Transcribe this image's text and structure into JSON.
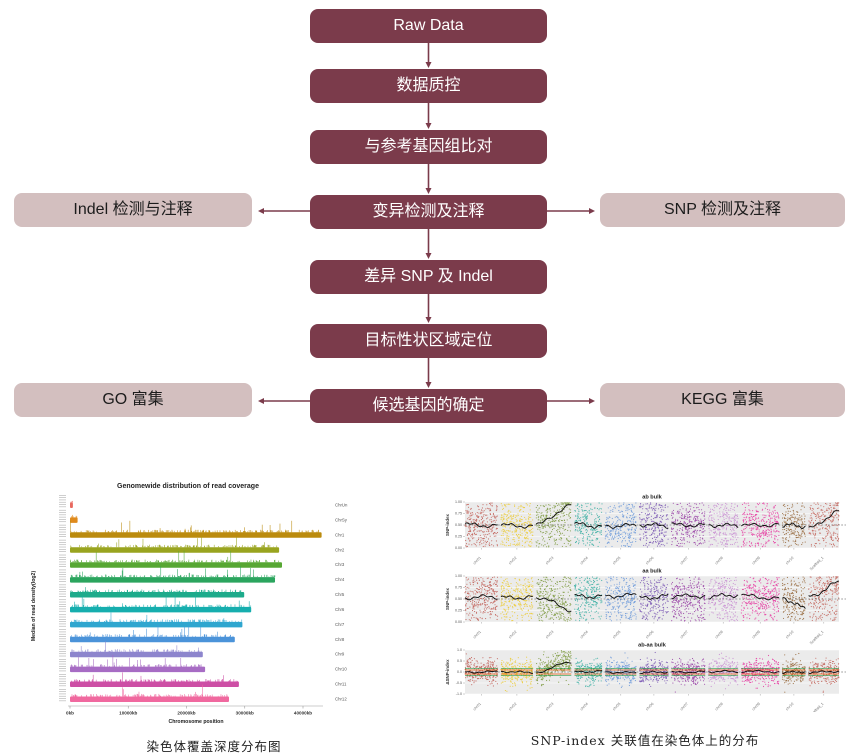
{
  "flowchart": {
    "main_nodes": [
      "Raw Data",
      "数据质控",
      "与参考基因组比对",
      "变异检测及注释",
      "差异 SNP 及 Indel",
      "目标性状区域定位",
      "候选基因的确定"
    ],
    "side_nodes": {
      "indel": "Indel 检测与注释",
      "snp": "SNP 检测及注释",
      "go": "GO 富集",
      "kegg": "KEGG 富集"
    },
    "colors": {
      "node_dark": "#7b3b4b",
      "node_light": "#d3bfbf",
      "arrow": "#7b3b4b",
      "dark_text": "#ffffff",
      "light_text": "#1c1c1c"
    }
  },
  "chart_data": [
    {
      "id": "read-coverage",
      "type": "bar",
      "title": "Genomewide distribution of read coverage",
      "xlabel": "Chromosome position",
      "ylabel": "Median of read density(log2)",
      "caption": "染色体覆盖深度分布图",
      "x_ticks": [
        {
          "label": "0kb",
          "kb": 0
        },
        {
          "label": "10000kb",
          "kb": 10000
        },
        {
          "label": "20000kb",
          "kb": 20000
        },
        {
          "label": "30000kb",
          "kb": 30000
        },
        {
          "label": "40000kb",
          "kb": 40000
        }
      ],
      "xlim_kb": [
        0,
        43500
      ],
      "bars": [
        {
          "label": "ChrUn",
          "length_kb": 500,
          "color": "#e8695f"
        },
        {
          "label": "ChrSy",
          "length_kb": 1300,
          "color": "#df8a1c"
        },
        {
          "label": "Chr1",
          "length_kb": 43200,
          "color": "#bb8b0e"
        },
        {
          "label": "Chr2",
          "length_kb": 35900,
          "color": "#99a41f"
        },
        {
          "label": "Chr3",
          "length_kb": 36400,
          "color": "#57a733"
        },
        {
          "label": "Chr4",
          "length_kb": 35200,
          "color": "#2ba55e"
        },
        {
          "label": "Chr5",
          "length_kb": 29900,
          "color": "#1dab8b"
        },
        {
          "label": "Chr6",
          "length_kb": 31100,
          "color": "#16aeae"
        },
        {
          "label": "Chr7",
          "length_kb": 29600,
          "color": "#2fa6cf"
        },
        {
          "label": "Chr8",
          "length_kb": 28300,
          "color": "#4b93d9"
        },
        {
          "label": "Chr9",
          "length_kb": 22800,
          "color": "#8d85cd"
        },
        {
          "label": "Chr10",
          "length_kb": 23200,
          "color": "#a76cc4"
        },
        {
          "label": "Chr11",
          "length_kb": 29000,
          "color": "#cd4fa5"
        },
        {
          "label": "Chr12",
          "length_kb": 27300,
          "color": "#f0699f"
        }
      ]
    },
    {
      "id": "snp-index",
      "type": "scatter",
      "caption": "SNP-index 关联值在染色体上的分布",
      "chromosomes": [
        {
          "label": "chr01",
          "color": "#bd5148",
          "rel_width": 1.02
        },
        {
          "label": "chr02",
          "color": "#ecc71c",
          "rel_width": 1.0
        },
        {
          "label": "chr03",
          "color": "#70902b",
          "rel_width": 1.1
        },
        {
          "label": "chr04",
          "color": "#27a89b",
          "rel_width": 0.86
        },
        {
          "label": "chr05",
          "color": "#5c8fd8",
          "rel_width": 0.97
        },
        {
          "label": "chr06",
          "color": "#6c46ad",
          "rel_width": 0.9
        },
        {
          "label": "chr07",
          "color": "#8f2d9e",
          "rel_width": 1.05
        },
        {
          "label": "chr08",
          "color": "#c583cf",
          "rel_width": 0.93
        },
        {
          "label": "chr09",
          "color": "#e5299a",
          "rel_width": 1.18
        },
        {
          "label": "chr10",
          "color": "#8d5a28",
          "rel_width": 0.72
        },
        {
          "label": "Scaffold_1",
          "color": "#c05a50",
          "rel_width": 0.95
        }
      ],
      "panels": [
        {
          "title": "ab bulk",
          "ylabel": "SNP-index",
          "ylim": [
            0,
            1
          ],
          "dashed_at": 0.5,
          "yticks": [
            {
              "label": "1.00",
              "v": 1.0
            },
            {
              "label": "0.75",
              "v": 0.75
            },
            {
              "label": "0.50",
              "v": 0.5
            },
            {
              "label": "0.25",
              "v": 0.25
            },
            {
              "label": "0.00",
              "v": 0.0
            }
          ],
          "line_base": 0.5,
          "line_overrides": {
            "chr03": [
              0.5,
              0.93
            ],
            "Scaffold_1": [
              0.42,
              0.8
            ]
          }
        },
        {
          "title": "aa bulk",
          "ylabel": "SNP-index",
          "ylim": [
            0,
            1
          ],
          "dashed_at": 0.5,
          "yticks": [
            {
              "label": "1.00",
              "v": 1.0
            },
            {
              "label": "0.75",
              "v": 0.75
            },
            {
              "label": "0.50",
              "v": 0.5
            },
            {
              "label": "0.25",
              "v": 0.25
            },
            {
              "label": "0.00",
              "v": 0.0
            }
          ],
          "line_base": 0.55,
          "line_overrides": {
            "chr03": [
              0.55,
              0.27
            ],
            "chr10": [
              0.52,
              0.3
            ],
            "Scaffold_1": [
              0.55,
              0.85
            ]
          }
        },
        {
          "title": "ab-aa bulk",
          "ylabel": "ΔSNP-index",
          "ylim": [
            -1,
            1
          ],
          "dashed_at": 0,
          "yticks": [
            {
              "label": "1.0",
              "v": 1.0
            },
            {
              "label": "0.5",
              "v": 0.5
            },
            {
              "label": "0.0",
              "v": 0.0
            },
            {
              "label": "-0.5",
              "v": -0.5
            },
            {
              "label": "-1.0",
              "v": -1.0
            }
          ],
          "line_base": 0,
          "line_overrides": {
            "chr03": [
              0,
              0.45
            ]
          },
          "threshold_lines": [
            {
              "v": 0.09,
              "color": "#e25508"
            },
            {
              "v": -0.09,
              "color": "#e25508"
            },
            {
              "v": 0.17,
              "color": "#2e9e4f"
            },
            {
              "v": -0.17,
              "color": "#2e9e4f"
            }
          ]
        }
      ]
    }
  ]
}
